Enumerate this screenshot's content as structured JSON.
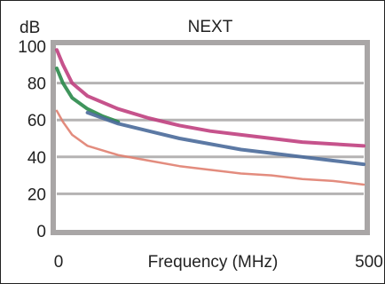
{
  "chart_data": {
    "type": "line",
    "title": "NEXT",
    "xlabel": "Frequency (MHz)",
    "ylabel": "dB",
    "xlim": [
      0,
      500
    ],
    "ylim": [
      0,
      100
    ],
    "x_ticks": [
      "0",
      "500"
    ],
    "y_ticks": [
      "0",
      "20",
      "40",
      "60",
      "80",
      "100"
    ],
    "grid": true,
    "series": [
      {
        "color": "#e08070",
        "x": [
          0,
          10,
          25,
          50,
          100,
          150,
          200,
          250,
          300,
          350,
          400,
          450,
          500
        ],
        "values": [
          65,
          59,
          52,
          46,
          41,
          38,
          35,
          33,
          31,
          30,
          28,
          27,
          25
        ]
      },
      {
        "color": "#c04080",
        "x": [
          0,
          10,
          25,
          50,
          100,
          150,
          200,
          250,
          300,
          350,
          400,
          450,
          500
        ],
        "values": [
          98,
          90,
          80,
          73,
          66,
          61,
          57,
          54,
          52,
          50,
          48,
          47,
          46
        ]
      },
      {
        "color": "#2a8a4a",
        "x": [
          0,
          10,
          25,
          50,
          75,
          100
        ],
        "values": [
          88,
          80,
          72,
          66,
          62,
          59
        ]
      },
      {
        "color": "#4a6a9a",
        "x": [
          50,
          100,
          150,
          200,
          250,
          300,
          350,
          400,
          450,
          500
        ],
        "values": [
          64,
          58,
          54,
          50,
          47,
          44,
          42,
          40,
          38,
          36
        ]
      }
    ]
  }
}
